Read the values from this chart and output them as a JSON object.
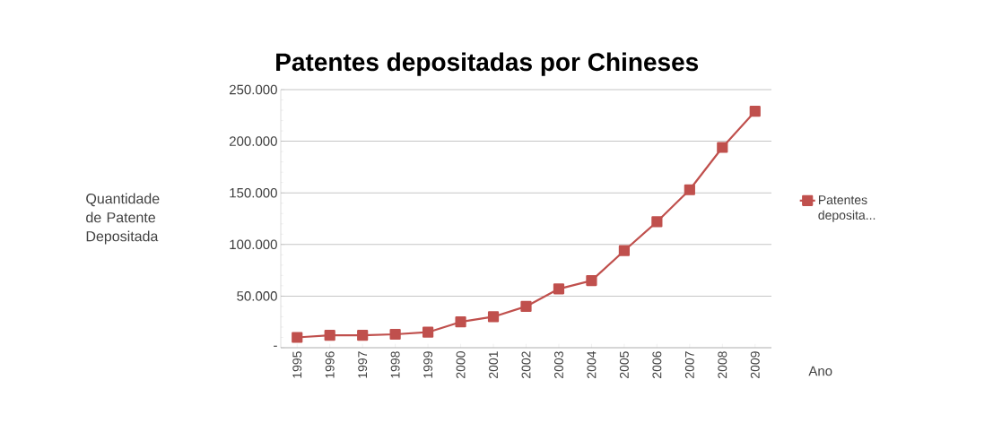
{
  "chart_data": {
    "type": "line",
    "title": "Patentes depositadas por Chineses",
    "xlabel": "Ano",
    "ylabel": "Quantidade de Patente Depositada",
    "categories": [
      "1995",
      "1996",
      "1997",
      "1998",
      "1999",
      "2000",
      "2001",
      "2002",
      "2003",
      "2004",
      "2005",
      "2006",
      "2007",
      "2008",
      "2009"
    ],
    "series": [
      {
        "name": "Patentes deposita...",
        "color": "#c0504d",
        "values": [
          10000,
          12000,
          12000,
          13000,
          15000,
          25000,
          30000,
          40000,
          57000,
          65000,
          94000,
          122000,
          153000,
          194000,
          229000
        ]
      }
    ],
    "ylim": [
      0,
      250000
    ],
    "yticks": [
      {
        "value": 0,
        "label": "-"
      },
      {
        "value": 50000,
        "label": "50.000"
      },
      {
        "value": 100000,
        "label": "100.000"
      },
      {
        "value": 150000,
        "label": "150.000"
      },
      {
        "value": 200000,
        "label": "200.000"
      },
      {
        "value": 250000,
        "label": "250.000"
      }
    ],
    "grid": "y",
    "legend": "right",
    "marker": "square",
    "line_style": "solid"
  }
}
